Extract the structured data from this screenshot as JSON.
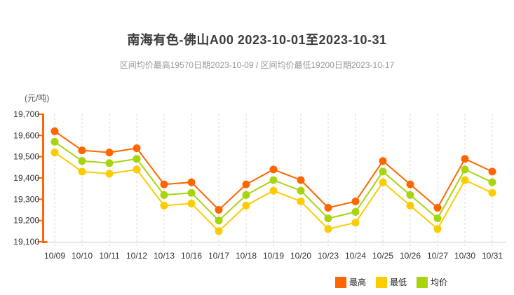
{
  "header": {
    "title": "南海有色-佛山A00 2023-10-01至2023-10-31",
    "subtitle": "区间均价最高19570日期2023-10-09 / 区间均价最低19200日期2023-10-17"
  },
  "y_axis_unit": "(元/吨)",
  "chart_data": {
    "type": "line",
    "title": "南海有色-佛山A00 2023-10-01至2023-10-31",
    "xlabel": "",
    "ylabel": "元/吨",
    "ylim": [
      19100,
      19700
    ],
    "y_tick_step": 100,
    "y_tick_values": [
      19100,
      19200,
      19300,
      19400,
      19500,
      19600,
      19700
    ],
    "y_tick_labels": [
      "19,100",
      "19,200",
      "19,300",
      "19,400",
      "19,500",
      "19,600",
      "19,700"
    ],
    "grid": "vertical-dashed",
    "legend_position": "bottom-right",
    "categories": [
      "10/09",
      "10/10",
      "10/11",
      "10/12",
      "10/13",
      "10/16",
      "10/17",
      "10/18",
      "10/19",
      "10/20",
      "10/23",
      "10/24",
      "10/25",
      "10/26",
      "10/27",
      "10/30",
      "10/31"
    ],
    "series": [
      {
        "key": "high",
        "name": "最高",
        "color": "#ff6600",
        "values": [
          19620,
          19530,
          19520,
          19540,
          19370,
          19380,
          19250,
          19370,
          19440,
          19390,
          19260,
          19290,
          19480,
          19370,
          19260,
          19490,
          19430
        ]
      },
      {
        "key": "low",
        "name": "最低",
        "color": "#fccc00",
        "values": [
          19520,
          19430,
          19420,
          19440,
          19270,
          19280,
          19150,
          19270,
          19340,
          19290,
          19160,
          19190,
          19380,
          19270,
          19160,
          19390,
          19330
        ]
      },
      {
        "key": "avg",
        "name": "均价",
        "color": "#a8d40e",
        "values": [
          19570,
          19480,
          19470,
          19490,
          19320,
          19330,
          19200,
          19320,
          19390,
          19340,
          19210,
          19240,
          19430,
          19320,
          19210,
          19440,
          19380
        ]
      }
    ],
    "axis_colors": {
      "y_axis": "#ff6600",
      "x_axis": "#cccccc",
      "grid": "#d8d8d8"
    },
    "text_colors": {
      "tick_label": "#333333"
    }
  }
}
